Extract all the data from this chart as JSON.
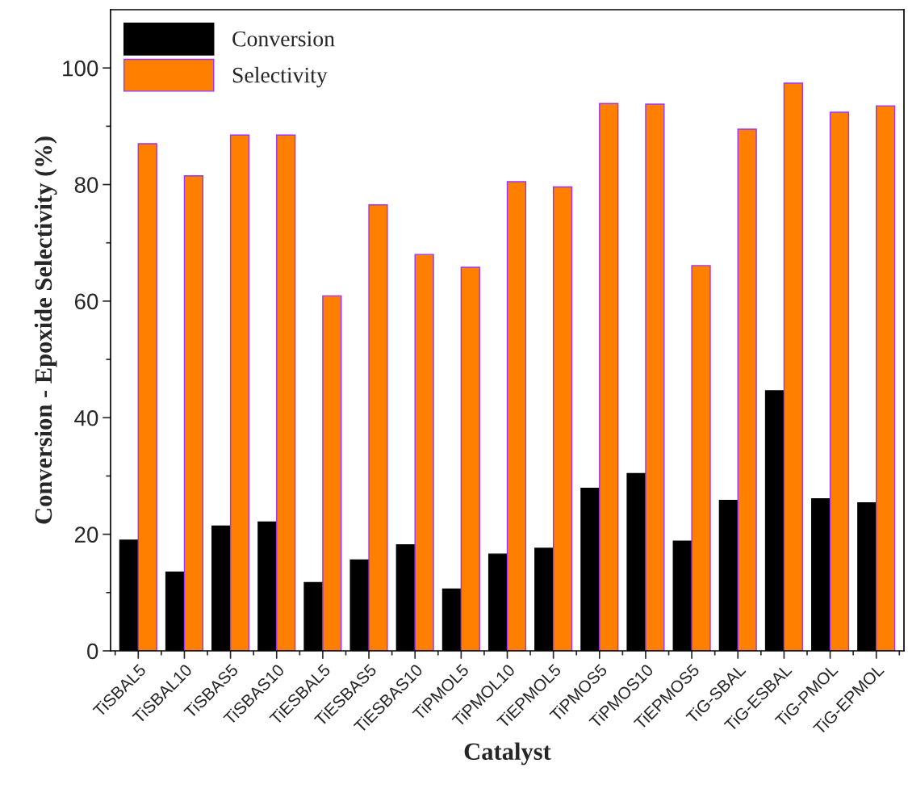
{
  "chart_data": {
    "type": "bar",
    "xlabel": "Catalyst",
    "ylabel": "Conversion - Epoxide Selectivity (%)",
    "categories": [
      "TiSBAL5",
      "TiSBAL10",
      "TiSBAS5",
      "TiSBAS10",
      "TiESBAL5",
      "TiESBAS5",
      "TiESBAS10",
      "TiPMOL5",
      "TiPMOL10",
      "TiEPMOL5",
      "TiPMOS5",
      "TiPMOS10",
      "TiEPMOS5",
      "TiG-SBAL",
      "TiG-ESBAL",
      "TiG-PMOL",
      "TiG-EPMOL"
    ],
    "series": [
      {
        "name": "Conversion",
        "color": "#000000",
        "values": [
          19.0,
          13.5,
          21.4,
          22.1,
          11.7,
          15.6,
          18.2,
          10.6,
          16.6,
          17.6,
          27.9,
          30.4,
          18.8,
          25.8,
          44.6,
          26.1,
          25.4
        ]
      },
      {
        "name": "Selectivity",
        "color": "#ff8000",
        "values": [
          87.0,
          81.5,
          88.5,
          88.5,
          60.9,
          76.5,
          68.0,
          65.8,
          80.5,
          79.6,
          93.9,
          93.8,
          66.1,
          89.5,
          97.4,
          92.4,
          93.5
        ]
      }
    ],
    "ylim": [
      0,
      110
    ],
    "yticks": [
      0,
      {
        "value": 10,
        "label": null
      },
      20,
      {
        "value": 30,
        "label": null
      },
      40,
      {
        "value": 50,
        "label": null
      },
      60,
      {
        "value": 70,
        "label": null
      },
      80,
      {
        "value": 90,
        "label": null
      },
      100
    ],
    "grid": false,
    "legend": "top left"
  }
}
